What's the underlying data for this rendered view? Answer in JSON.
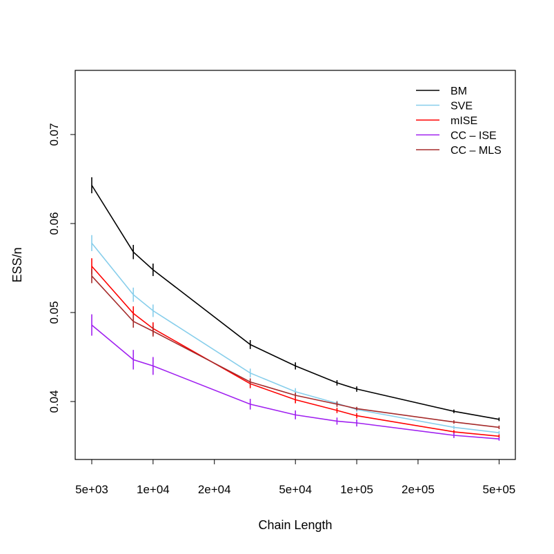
{
  "chart_data": {
    "type": "line",
    "title": "",
    "xlabel": "Chain Length",
    "ylabel": "ESS/n",
    "x_scale": "log",
    "xlim": [
      4400,
      570000
    ],
    "ylim": [
      0.0335,
      0.0772
    ],
    "grid": false,
    "legend_position": "top-right",
    "x_ticks": [
      5000,
      10000,
      20000,
      50000,
      100000,
      200000,
      500000
    ],
    "x_tick_labels": [
      "5e+03",
      "1e+04",
      "2e+04",
      "5e+04",
      "1e+05",
      "2e+05",
      "5e+05"
    ],
    "y_ticks": [
      0.04,
      0.05,
      0.06,
      0.07
    ],
    "y_tick_labels": [
      "0.04",
      "0.05",
      "0.06",
      "0.07"
    ],
    "x": [
      5000,
      8000,
      10000,
      30000,
      50000,
      80000,
      100000,
      300000,
      500000
    ],
    "series": [
      {
        "name": "BM",
        "color": "#000000",
        "values": [
          0.0643,
          0.0568,
          0.0548,
          0.0464,
          0.044,
          0.0421,
          0.0414,
          0.0389,
          0.038
        ],
        "error": [
          0.0009,
          0.0008,
          0.0007,
          0.0005,
          0.0004,
          0.0003,
          0.0003,
          0.0002,
          0.0002
        ]
      },
      {
        "name": "SVE",
        "color": "#87CEEB",
        "values": [
          0.0578,
          0.052,
          0.0502,
          0.0432,
          0.0411,
          0.0398,
          0.0391,
          0.0371,
          0.0365
        ],
        "error": [
          0.0009,
          0.0008,
          0.0007,
          0.0005,
          0.0004,
          0.0003,
          0.0003,
          0.0002,
          0.0002
        ]
      },
      {
        "name": "mISE",
        "color": "#FF0000",
        "values": [
          0.0552,
          0.0499,
          0.0482,
          0.042,
          0.0402,
          0.039,
          0.0384,
          0.0366,
          0.0361
        ],
        "error": [
          0.0009,
          0.0008,
          0.0007,
          0.0005,
          0.0004,
          0.0003,
          0.0003,
          0.0002,
          0.0002
        ]
      },
      {
        "name": "CC – ISE",
        "color": "#A020F0",
        "values": [
          0.0486,
          0.0447,
          0.044,
          0.0397,
          0.0385,
          0.0378,
          0.0376,
          0.0362,
          0.0358
        ],
        "error": [
          0.0012,
          0.0011,
          0.001,
          0.0006,
          0.0005,
          0.0004,
          0.0004,
          0.0003,
          0.0002
        ]
      },
      {
        "name": "CC – MLS",
        "color": "#A52A2A",
        "values": [
          0.0541,
          0.049,
          0.0479,
          0.0422,
          0.0407,
          0.0397,
          0.0392,
          0.0377,
          0.0371
        ],
        "error": [
          0.0008,
          0.0007,
          0.0006,
          0.0004,
          0.0003,
          0.0003,
          0.0002,
          0.0002,
          0.0002
        ]
      }
    ]
  }
}
